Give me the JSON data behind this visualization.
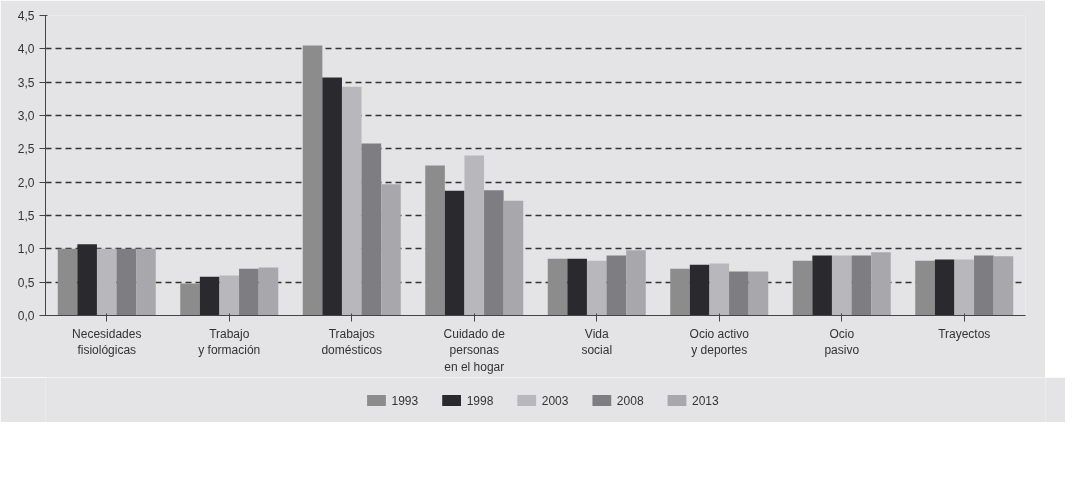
{
  "chart_data": {
    "type": "bar",
    "categories": [
      "Necesidades\nfisiológicas",
      "Trabajo\ny formación",
      "Trabajos\ndomésticos",
      "Cuidado de\npersonas\nen el hogar",
      "Vida\nsocial",
      "Ocio activo\ny deportes",
      "Ocio\npasivo",
      "Trayectos"
    ],
    "series": [
      {
        "name": "1993",
        "color": "#8c8c8c",
        "values": [
          1.0,
          0.48,
          4.05,
          2.25,
          0.85,
          0.7,
          0.82,
          0.82
        ]
      },
      {
        "name": "1998",
        "color": "#2a2a2e",
        "values": [
          1.07,
          0.58,
          3.57,
          1.87,
          0.85,
          0.76,
          0.9,
          0.84
        ]
      },
      {
        "name": "2003",
        "color": "#b8b8bc",
        "values": [
          1.0,
          0.6,
          3.43,
          2.4,
          0.82,
          0.78,
          0.9,
          0.84
        ]
      },
      {
        "name": "2008",
        "color": "#7e7e82",
        "values": [
          1.0,
          0.7,
          2.58,
          1.88,
          0.9,
          0.66,
          0.9,
          0.9
        ]
      },
      {
        "name": "2013",
        "color": "#a8a8ac",
        "values": [
          1.0,
          0.72,
          1.97,
          1.72,
          0.98,
          0.66,
          0.95,
          0.89
        ]
      }
    ],
    "ylim": [
      0,
      4.5
    ],
    "yticks": [
      {
        "value": 0,
        "label": "0,0"
      },
      {
        "value": 0.5,
        "label": "0,5"
      },
      {
        "value": 1,
        "label": "1,0"
      },
      {
        "value": 1.5,
        "label": "1,5"
      },
      {
        "value": 2,
        "label": "2,0"
      },
      {
        "value": 2.5,
        "label": "2,5"
      },
      {
        "value": 3,
        "label": "3,0"
      },
      {
        "value": 3.5,
        "label": "3,5"
      },
      {
        "value": 4,
        "label": "4,0"
      },
      {
        "value": 4.5,
        "label": "4,5"
      }
    ],
    "grid": "y",
    "legend": "bottom"
  }
}
